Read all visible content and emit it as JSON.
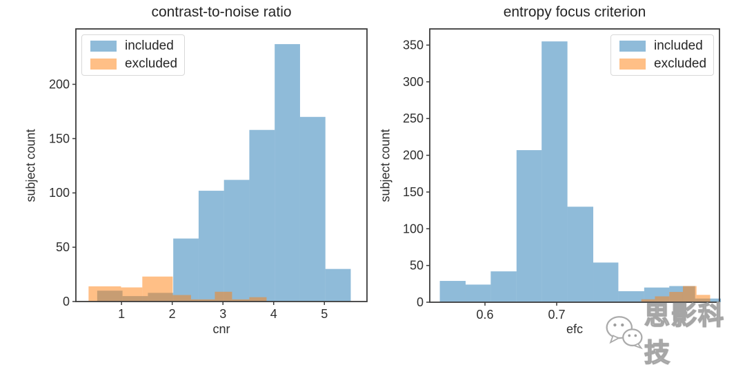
{
  "page": {
    "background": "#ffffff"
  },
  "watermark": {
    "icon": "wechat-icon",
    "text": "思影科技",
    "text_color": "#ffffff",
    "outline_color": "#a6a6a6"
  },
  "chart_data": [
    {
      "type": "bar",
      "subtype": "histogram",
      "title": "contrast-to-noise ratio",
      "xlabel": "cnr",
      "ylabel": "subject count",
      "xlim": [
        0.1,
        5.84
      ],
      "ylim": [
        0,
        251
      ],
      "grid": false,
      "legend_position": "top-left",
      "xticks": [
        {
          "v": 1,
          "label": "1"
        },
        {
          "v": 2,
          "label": "2"
        },
        {
          "v": 3,
          "label": "3"
        },
        {
          "v": 4,
          "label": "4"
        },
        {
          "v": 5,
          "label": "5"
        }
      ],
      "yticks": [
        {
          "v": 0,
          "label": "0"
        },
        {
          "v": 50,
          "label": "50"
        },
        {
          "v": 100,
          "label": "100"
        },
        {
          "v": 150,
          "label": "150"
        },
        {
          "v": 200,
          "label": "200"
        }
      ],
      "series": [
        {
          "name": "included",
          "color": "#1f77b4",
          "opacity": 0.5,
          "bin_edges": [
            0.52,
            1.02,
            1.52,
            2.02,
            2.52,
            3.02,
            3.52,
            4.02,
            4.52,
            5.02,
            5.52
          ],
          "counts": [
            10,
            5,
            8,
            58,
            102,
            112,
            158,
            237,
            170,
            30
          ]
        },
        {
          "name": "excluded",
          "color": "#ff7f0e",
          "opacity": 0.5,
          "bin_edges": [
            0.35,
            0.99,
            1.41,
            2.01,
            2.37,
            2.84,
            3.18,
            3.52,
            3.86
          ],
          "counts": [
            14,
            13,
            23,
            6,
            2,
            9,
            2,
            4
          ]
        }
      ]
    },
    {
      "type": "bar",
      "subtype": "histogram",
      "title": "entropy focus criterion",
      "xlabel": "efc",
      "ylabel": "subject count",
      "xlim": [
        0.523,
        0.927
      ],
      "ylim": [
        0,
        372
      ],
      "grid": false,
      "legend_position": "top-right",
      "xticks": [
        {
          "v": 0.6,
          "label": "0.6"
        },
        {
          "v": 0.7,
          "label": "0.7"
        }
      ],
      "yticks": [
        {
          "v": 0,
          "label": "0"
        },
        {
          "v": 50,
          "label": "50"
        },
        {
          "v": 100,
          "label": "100"
        },
        {
          "v": 150,
          "label": "150"
        },
        {
          "v": 200,
          "label": "200"
        },
        {
          "v": 250,
          "label": "250"
        },
        {
          "v": 300,
          "label": "300"
        },
        {
          "v": 350,
          "label": "350"
        }
      ],
      "series": [
        {
          "name": "included",
          "color": "#1f77b4",
          "opacity": 0.5,
          "bin_edges": [
            0.537,
            0.573,
            0.608,
            0.644,
            0.679,
            0.715,
            0.751,
            0.786,
            0.822,
            0.857,
            0.893,
            0.929
          ],
          "counts": [
            29,
            24,
            42,
            207,
            355,
            130,
            54,
            15,
            20,
            22,
            5
          ]
        },
        {
          "name": "excluded",
          "color": "#ff7f0e",
          "opacity": 0.5,
          "bin_edges": [
            0.818,
            0.837,
            0.857,
            0.876,
            0.895,
            0.914
          ],
          "counts": [
            4,
            8,
            14,
            22,
            10
          ]
        }
      ]
    }
  ]
}
